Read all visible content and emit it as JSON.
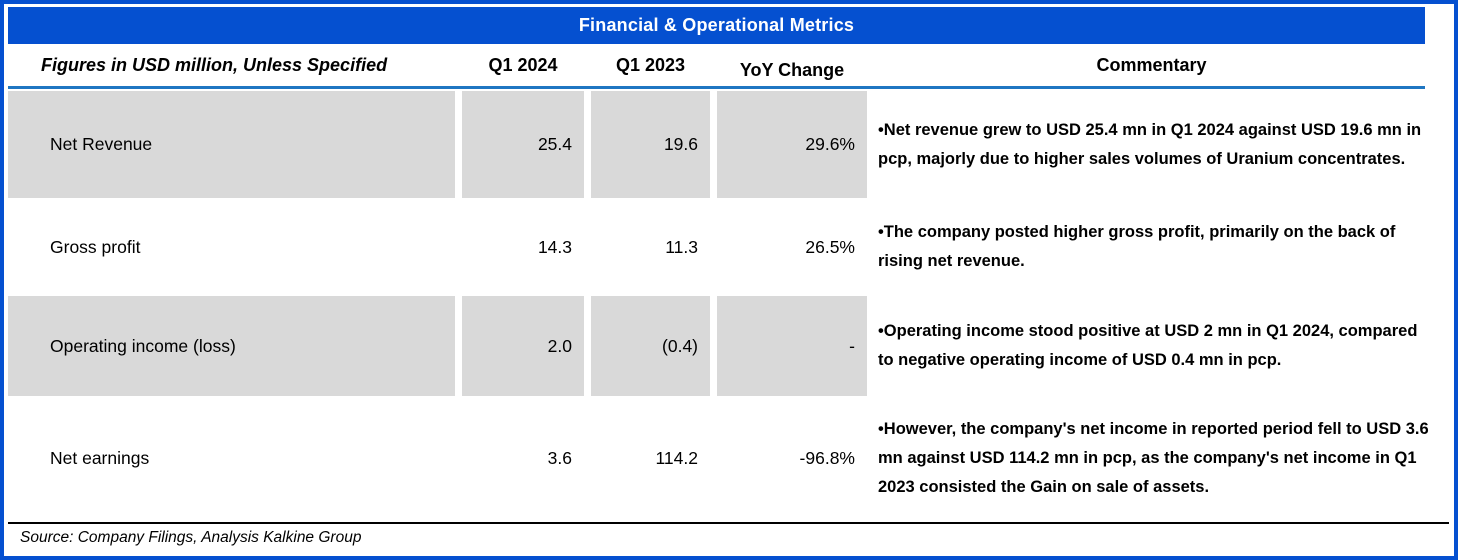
{
  "title": "Financial & Operational Metrics",
  "colors": {
    "title_bg": "#0550D0",
    "outer_border": "#0550D0",
    "header_underline": "#1F76C2",
    "row_shade": "#D9D9D9"
  },
  "table": {
    "headers": {
      "label": "Figures in USD million, Unless Specified",
      "q1_2024": "Q1 2024",
      "q1_2023": "Q1 2023",
      "yoy": "YoY Change",
      "commentary": "Commentary"
    },
    "rows": [
      {
        "label": "Net Revenue",
        "q1_2024": "25.4",
        "q1_2023": "19.6",
        "yoy": "29.6%",
        "commentary": "•Net revenue grew to USD 25.4 mn in Q1 2024 against USD 19.6 mn in pcp, majorly due to higher sales volumes of Uranium concentrates."
      },
      {
        "label": "Gross profit",
        "q1_2024": "14.3",
        "q1_2023": "11.3",
        "yoy": "26.5%",
        "commentary": "•The company posted higher gross profit, primarily on the back of rising net revenue."
      },
      {
        "label": "Operating income (loss)",
        "q1_2024": "2.0",
        "q1_2023": "(0.4)",
        "yoy": "-",
        "commentary": "•Operating income stood positive at USD 2 mn in Q1 2024, compared to negative operating income of USD 0.4 mn in pcp."
      },
      {
        "label": "Net earnings",
        "q1_2024": "3.6",
        "q1_2023": "114.2",
        "yoy": "-96.8%",
        "commentary": "•However, the company's net income in reported period fell to USD 3.6 mn against USD 114.2 mn in pcp, as the company's net income in Q1 2023 consisted the Gain on sale of assets."
      }
    ]
  },
  "footer": {
    "source": "Source: Company Filings, Analysis Kalkine Group"
  }
}
